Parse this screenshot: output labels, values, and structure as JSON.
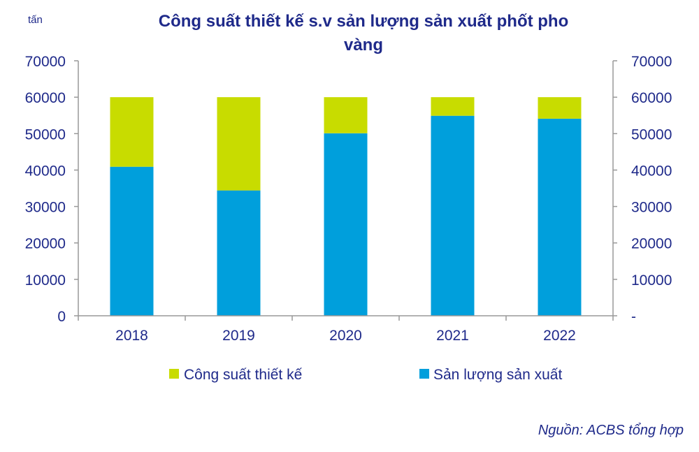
{
  "chart_data": {
    "type": "bar",
    "stacked": true,
    "title_lines": [
      "Công suất thiết kế s.v sản lượng sản xuất phốt pho",
      "vàng"
    ],
    "unit_label": "tấn",
    "categories": [
      "2018",
      "2019",
      "2020",
      "2021",
      "2022"
    ],
    "series": [
      {
        "name": "Sản lượng sản xuất",
        "color": "#009fdc",
        "values": [
          40900,
          34400,
          50100,
          54900,
          54100
        ]
      },
      {
        "name": "Công suất thiết kế",
        "color": "#c8dc00",
        "values": [
          19100,
          25600,
          9900,
          5100,
          5900
        ]
      }
    ],
    "legend_order": [
      "Công suất thiết kế",
      "Sản lượng sản xuất"
    ],
    "legend_position": "bottom",
    "ylim": [
      0,
      70000
    ],
    "y_ticks_left": [
      "0",
      "10000",
      "20000",
      "30000",
      "40000",
      "50000",
      "60000",
      "70000"
    ],
    "y_ticks_right": [
      "-",
      "10000",
      "20000",
      "30000",
      "40000",
      "50000",
      "60000",
      "70000"
    ],
    "grid": false
  },
  "source_note": "Nguồn: ACBS tổng hợp",
  "colors": {
    "text": "#1f2a8a",
    "axis": "#999999"
  }
}
